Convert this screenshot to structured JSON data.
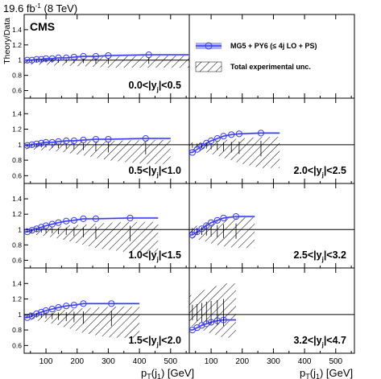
{
  "header": {
    "lumi_value": "19.6 fb",
    "lumi_exp": "-1",
    "lumi_energy": " (8 TeV)",
    "experiment": "CMS"
  },
  "legend": {
    "model": "MG5 + PY6 (≤ 4j LO + PS)",
    "uncertainty": "Total experimental unc."
  },
  "colors": {
    "model": "#3b3bff",
    "band": "#aab0f2",
    "hatch": "#000000"
  },
  "chart_data": {
    "type": "line",
    "ylabel": "Theory/Data",
    "xlabel_left": "pT(j1) [GeV]",
    "xlabel_right": "pT(j1) [GeV]",
    "x_range": [
      30,
      560
    ],
    "y_range": [
      0.5,
      1.6
    ],
    "y_ticks": [
      0.6,
      0.8,
      1.0,
      1.2,
      1.4
    ],
    "y_tick_labels": [
      "0.6",
      "0.8",
      "1",
      "1.2",
      "1.4"
    ],
    "x_ticks": [
      100,
      200,
      300,
      400,
      500
    ],
    "x_tick_labels": [
      "100",
      "200",
      "300",
      "400",
      "500"
    ],
    "panels": [
      {
        "label": "0.0<|yj|<0.5",
        "label_pre": "0.0<|y",
        "label_sub": "j",
        "label_post": "|<0.5",
        "col": 0,
        "row": 0,
        "x": [
          40,
          55,
          70,
          85,
          100,
          120,
          140,
          165,
          190,
          220,
          260,
          300,
          430
        ],
        "y": [
          1.0,
          1.0,
          1.01,
          1.01,
          1.02,
          1.02,
          1.03,
          1.03,
          1.04,
          1.05,
          1.05,
          1.06,
          1.07
        ],
        "line_x_max": 560,
        "unc_up": [
          0.02,
          0.02,
          0.02,
          0.02,
          0.02,
          0.03,
          0.03,
          0.03,
          0.04,
          0.04,
          0.05,
          0.05,
          0.06
        ],
        "unc_down": [
          0.06,
          0.06,
          0.06,
          0.06,
          0.06,
          0.07,
          0.07,
          0.07,
          0.08,
          0.08,
          0.09,
          0.1,
          0.1
        ],
        "unc_x_max": 560
      },
      {
        "label": "0.5<|yj|<1.0",
        "label_pre": "0.5<|y",
        "label_sub": "j",
        "label_post": "|<1.0",
        "col": 0,
        "row": 1,
        "x": [
          40,
          55,
          70,
          85,
          100,
          120,
          140,
          165,
          190,
          220,
          260,
          300,
          420
        ],
        "y": [
          0.99,
          1.0,
          1.01,
          1.02,
          1.03,
          1.03,
          1.04,
          1.05,
          1.05,
          1.06,
          1.07,
          1.07,
          1.08
        ],
        "line_x_max": 500,
        "unc_up": [
          0.02,
          0.02,
          0.02,
          0.02,
          0.03,
          0.03,
          0.03,
          0.04,
          0.04,
          0.05,
          0.05,
          0.05,
          0.06
        ],
        "unc_down": [
          0.06,
          0.06,
          0.07,
          0.07,
          0.07,
          0.08,
          0.09,
          0.1,
          0.12,
          0.14,
          0.17,
          0.2,
          0.25
        ],
        "unc_x_max": 500
      },
      {
        "label": "1.0<|yj|<1.5",
        "label_pre": "1.0<|y",
        "label_sub": "j",
        "label_post": "|<1.5",
        "col": 0,
        "row": 2,
        "x": [
          40,
          55,
          70,
          85,
          100,
          120,
          140,
          165,
          190,
          220,
          260,
          370
        ],
        "y": [
          0.97,
          0.99,
          1.01,
          1.03,
          1.05,
          1.07,
          1.09,
          1.11,
          1.12,
          1.14,
          1.14,
          1.15
        ],
        "line_x_max": 460,
        "unc_up": [
          0.02,
          0.02,
          0.03,
          0.03,
          0.03,
          0.04,
          0.04,
          0.05,
          0.06,
          0.06,
          0.08,
          0.1
        ],
        "unc_down": [
          0.06,
          0.07,
          0.07,
          0.08,
          0.09,
          0.1,
          0.12,
          0.14,
          0.17,
          0.2,
          0.24,
          0.3
        ],
        "unc_x_max": 460
      },
      {
        "label": "1.5<|yj|<2.0",
        "label_pre": "1.5<|y",
        "label_sub": "j",
        "label_post": "|<2.0",
        "col": 0,
        "row": 3,
        "x": [
          40,
          55,
          70,
          85,
          100,
          120,
          140,
          165,
          190,
          220,
          310
        ],
        "y": [
          0.96,
          0.98,
          1.01,
          1.03,
          1.05,
          1.07,
          1.09,
          1.11,
          1.12,
          1.14,
          1.14
        ],
        "line_x_max": 400,
        "unc_up": [
          0.02,
          0.03,
          0.03,
          0.03,
          0.04,
          0.04,
          0.05,
          0.06,
          0.07,
          0.08,
          0.1
        ],
        "unc_down": [
          0.07,
          0.07,
          0.08,
          0.09,
          0.1,
          0.12,
          0.14,
          0.17,
          0.2,
          0.24,
          0.3
        ],
        "unc_x_max": 400
      },
      {
        "label": "2.0<|yj|<2.5",
        "label_pre": "2.0<|y",
        "label_sub": "j",
        "label_post": "|<2.5",
        "col": 1,
        "row": 1,
        "x": [
          40,
          55,
          70,
          85,
          100,
          120,
          140,
          165,
          190,
          260
        ],
        "y": [
          0.9,
          0.94,
          0.98,
          1.02,
          1.05,
          1.08,
          1.11,
          1.13,
          1.14,
          1.15
        ],
        "line_x_max": 320,
        "unc_up": [
          0.03,
          0.03,
          0.03,
          0.04,
          0.04,
          0.05,
          0.06,
          0.07,
          0.08,
          0.1
        ],
        "unc_down": [
          0.08,
          0.08,
          0.09,
          0.1,
          0.12,
          0.14,
          0.17,
          0.2,
          0.24,
          0.3
        ],
        "unc_x_max": 320
      },
      {
        "label": "2.5<|yj|<3.2",
        "label_pre": "2.5<|y",
        "label_sub": "j",
        "label_post": "|<3.2",
        "col": 1,
        "row": 2,
        "x": [
          40,
          55,
          70,
          85,
          100,
          120,
          140,
          180
        ],
        "y": [
          0.93,
          0.97,
          1.01,
          1.05,
          1.09,
          1.12,
          1.15,
          1.17
        ],
        "line_x_max": 240,
        "unc_up": [
          0.04,
          0.05,
          0.06,
          0.08,
          0.1,
          0.12,
          0.14,
          0.16
        ],
        "unc_down": [
          0.12,
          0.13,
          0.14,
          0.16,
          0.18,
          0.2,
          0.22,
          0.24
        ],
        "unc_x_max": 240
      },
      {
        "label": "3.2<|yj|<4.7",
        "label_pre": "3.2<|y",
        "label_sub": "j",
        "label_post": "|<4.7",
        "col": 1,
        "row": 3,
        "x": [
          40,
          55,
          70,
          85,
          100,
          120,
          140
        ],
        "y": [
          0.8,
          0.83,
          0.86,
          0.88,
          0.9,
          0.92,
          0.93
        ],
        "line_x_max": 180,
        "unc_up": [
          0.25,
          0.27,
          0.3,
          0.33,
          0.35,
          0.37,
          0.4
        ],
        "unc_down": [
          0.15,
          0.17,
          0.2,
          0.22,
          0.25,
          0.27,
          0.3
        ],
        "unc_x_max": 180
      }
    ]
  }
}
